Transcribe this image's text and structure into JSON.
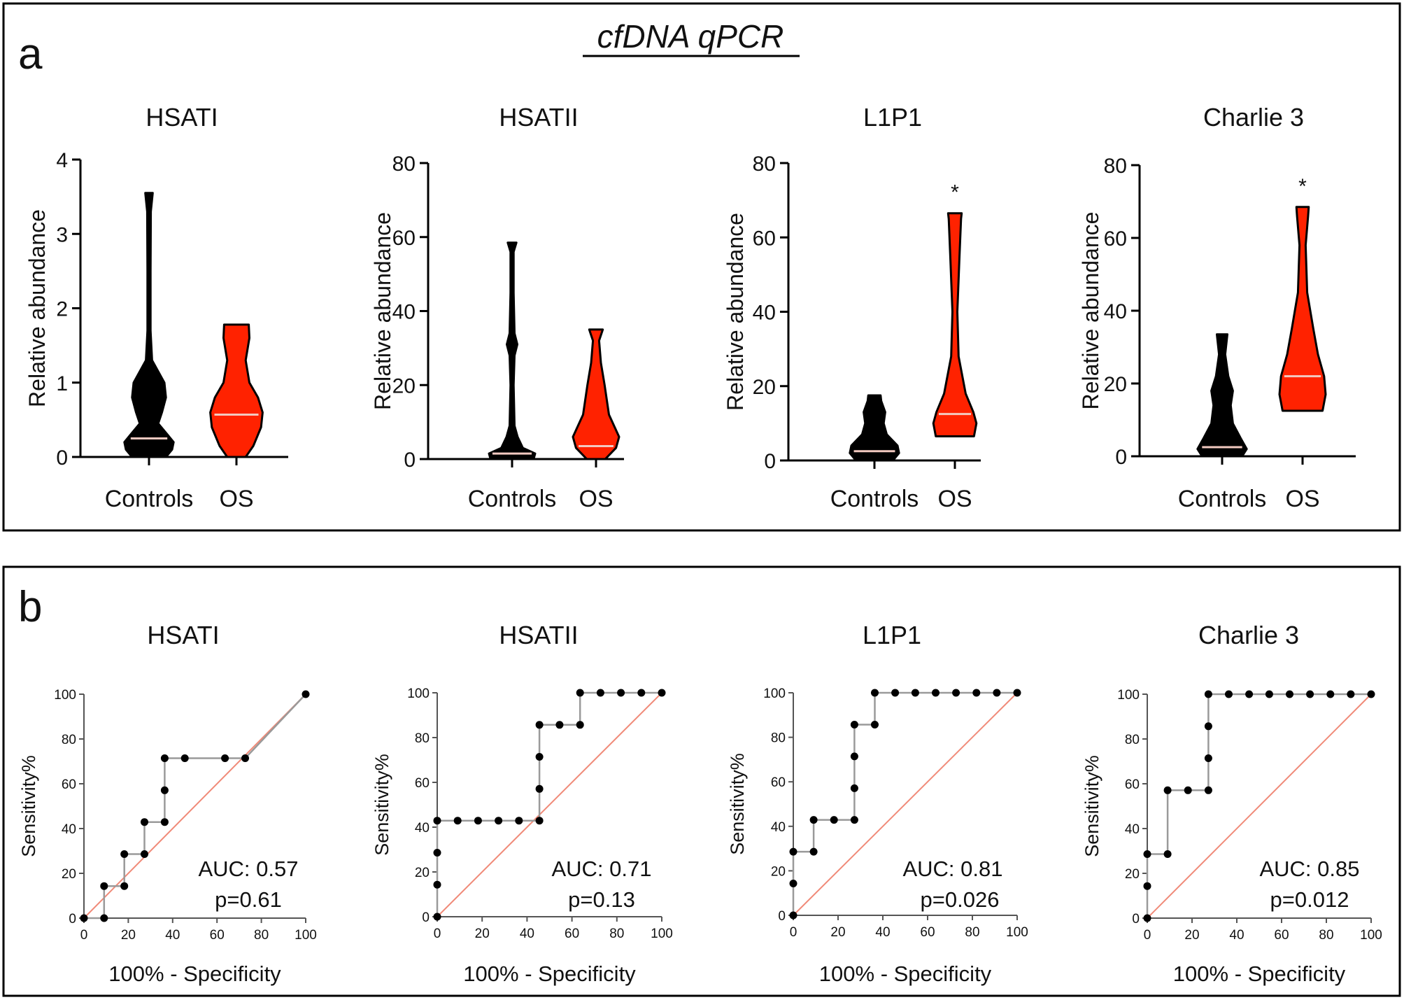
{
  "figure": {
    "panel_a": {
      "letter": "a",
      "heading": "cfDNA qPCR"
    },
    "panel_b": {
      "letter": "b"
    }
  },
  "chart_data": [
    {
      "type": "violin",
      "panel": "a",
      "title": "HSATI",
      "ylabel": "Relative abundance",
      "ylim": [
        0,
        4
      ],
      "yticks": [
        0,
        1,
        2,
        3,
        4
      ],
      "categories": [
        "Controls",
        "OS"
      ],
      "significance": [
        "",
        ""
      ],
      "series": [
        {
          "category": "Controls",
          "color": "#000000",
          "median": 0.25,
          "profile": [
            [
              0,
              0.55
            ],
            [
              0.1,
              0.75
            ],
            [
              0.2,
              0.8
            ],
            [
              0.3,
              0.6
            ],
            [
              0.45,
              0.3
            ],
            [
              0.6,
              0.42
            ],
            [
              0.8,
              0.55
            ],
            [
              1.0,
              0.5
            ],
            [
              1.15,
              0.3
            ],
            [
              1.3,
              0.1
            ],
            [
              1.7,
              0.05
            ],
            [
              2.5,
              0.05
            ],
            [
              3.3,
              0.06
            ],
            [
              3.55,
              0.12
            ]
          ]
        },
        {
          "category": "OS",
          "color": "#ff2200",
          "median": 0.57,
          "profile": [
            [
              0,
              0.3
            ],
            [
              0.15,
              0.55
            ],
            [
              0.4,
              0.8
            ],
            [
              0.6,
              0.85
            ],
            [
              0.8,
              0.7
            ],
            [
              1.0,
              0.42
            ],
            [
              1.3,
              0.3
            ],
            [
              1.6,
              0.42
            ],
            [
              1.78,
              0.4
            ]
          ]
        }
      ]
    },
    {
      "type": "violin",
      "panel": "a",
      "title": "HSATII",
      "ylabel": "Relative abundance",
      "ylim": [
        0,
        80
      ],
      "yticks": [
        0,
        20,
        40,
        60,
        80
      ],
      "categories": [
        "Controls",
        "OS"
      ],
      "significance": [
        "",
        ""
      ],
      "series": [
        {
          "category": "Controls",
          "color": "#000000",
          "median": 1.5,
          "profile": [
            [
              0,
              0.7
            ],
            [
              1.5,
              0.75
            ],
            [
              3,
              0.35
            ],
            [
              6,
              0.18
            ],
            [
              9,
              0.08
            ],
            [
              20,
              0.05
            ],
            [
              28,
              0.08
            ],
            [
              31,
              0.17
            ],
            [
              34,
              0.08
            ],
            [
              45,
              0.05
            ],
            [
              56,
              0.05
            ],
            [
              58.5,
              0.14
            ]
          ]
        },
        {
          "category": "OS",
          "color": "#ff2200",
          "median": 3.5,
          "profile": [
            [
              0,
              0.3
            ],
            [
              3,
              0.65
            ],
            [
              6,
              0.75
            ],
            [
              12,
              0.42
            ],
            [
              20,
              0.28
            ],
            [
              26,
              0.16
            ],
            [
              32,
              0.1
            ],
            [
              35,
              0.22
            ]
          ]
        }
      ]
    },
    {
      "type": "violin",
      "panel": "a",
      "title": "L1P1",
      "ylabel": "Relative abundance",
      "ylim": [
        0,
        80
      ],
      "yticks": [
        0,
        20,
        40,
        60,
        80
      ],
      "categories": [
        "Controls",
        "OS"
      ],
      "significance": [
        "",
        "*"
      ],
      "series": [
        {
          "category": "Controls",
          "color": "#000000",
          "median": 2.5,
          "profile": [
            [
              0,
              0.6
            ],
            [
              2,
              0.8
            ],
            [
              4,
              0.75
            ],
            [
              7,
              0.4
            ],
            [
              10,
              0.3
            ],
            [
              13,
              0.35
            ],
            [
              16,
              0.22
            ],
            [
              17.5,
              0.2
            ]
          ]
        },
        {
          "category": "OS",
          "color": "#ff2200",
          "median": 12.5,
          "profile": [
            [
              6.5,
              0.62
            ],
            [
              10,
              0.7
            ],
            [
              13,
              0.6
            ],
            [
              18,
              0.35
            ],
            [
              28,
              0.12
            ],
            [
              40,
              0.08
            ],
            [
              55,
              0.15
            ],
            [
              65,
              0.2
            ],
            [
              66.5,
              0.22
            ]
          ]
        }
      ]
    },
    {
      "type": "violin",
      "panel": "a",
      "title": "Charlie 3",
      "ylabel": "Relative abundance",
      "ylim": [
        0,
        80
      ],
      "yticks": [
        0,
        20,
        40,
        60,
        80
      ],
      "categories": [
        "Controls",
        "OS"
      ],
      "significance": [
        "",
        "*"
      ],
      "series": [
        {
          "category": "Controls",
          "color": "#000000",
          "median": 2.5,
          "profile": [
            [
              0,
              0.65
            ],
            [
              2,
              0.8
            ],
            [
              5,
              0.6
            ],
            [
              9,
              0.35
            ],
            [
              14,
              0.28
            ],
            [
              18,
              0.35
            ],
            [
              22,
              0.2
            ],
            [
              28,
              0.1
            ],
            [
              33.5,
              0.17
            ]
          ]
        },
        {
          "category": "OS",
          "color": "#ff2200",
          "median": 22,
          "profile": [
            [
              12.5,
              0.65
            ],
            [
              17,
              0.75
            ],
            [
              22,
              0.7
            ],
            [
              28,
              0.5
            ],
            [
              35,
              0.35
            ],
            [
              45,
              0.15
            ],
            [
              58,
              0.1
            ],
            [
              66,
              0.18
            ],
            [
              68.5,
              0.2
            ]
          ]
        }
      ]
    },
    {
      "type": "roc",
      "panel": "b",
      "title": "HSATI",
      "xlabel": "100% - Specificity",
      "ylabel": "Sensitivity%",
      "xlim": [
        0,
        100
      ],
      "ylim": [
        0,
        100
      ],
      "ticks": [
        0,
        20,
        40,
        60,
        80,
        100
      ],
      "auc_label": "AUC: 0.57",
      "p_label": "p=0.61",
      "x": [
        0,
        9.1,
        9.1,
        18.2,
        18.2,
        27.3,
        27.3,
        36.4,
        36.4,
        36.4,
        45.5,
        63.6,
        72.7,
        100
      ],
      "y": [
        0,
        0,
        14.3,
        14.3,
        28.6,
        28.6,
        42.9,
        42.9,
        57.1,
        71.4,
        71.4,
        71.4,
        71.4,
        100
      ]
    },
    {
      "type": "roc",
      "panel": "b",
      "title": "HSATII",
      "xlabel": "100% - Specificity",
      "ylabel": "Sensitivity%",
      "xlim": [
        0,
        100
      ],
      "ylim": [
        0,
        100
      ],
      "ticks": [
        0,
        20,
        40,
        60,
        80,
        100
      ],
      "auc_label": "AUC: 0.71",
      "p_label": "p=0.13",
      "x": [
        0,
        0,
        0,
        0,
        9.1,
        18.2,
        27.3,
        36.4,
        45.5,
        45.5,
        45.5,
        45.5,
        54.5,
        63.6,
        63.6,
        72.7,
        81.8,
        90.9,
        100
      ],
      "y": [
        0,
        14.3,
        28.6,
        42.9,
        42.9,
        42.9,
        42.9,
        42.9,
        42.9,
        57.1,
        71.4,
        85.7,
        85.7,
        85.7,
        100,
        100,
        100,
        100,
        100
      ]
    },
    {
      "type": "roc",
      "panel": "b",
      "title": "L1P1",
      "xlabel": "100% - Specificity",
      "ylabel": "Sensitivity%",
      "xlim": [
        0,
        100
      ],
      "ylim": [
        0,
        100
      ],
      "ticks": [
        0,
        20,
        40,
        60,
        80,
        100
      ],
      "auc_label": "AUC: 0.81",
      "p_label": "p=0.026",
      "x": [
        0,
        0,
        0,
        9.1,
        9.1,
        18.2,
        27.3,
        27.3,
        27.3,
        27.3,
        36.4,
        36.4,
        45.5,
        54.5,
        63.6,
        72.7,
        81.8,
        90.9,
        100
      ],
      "y": [
        0,
        14.3,
        28.6,
        28.6,
        42.9,
        42.9,
        42.9,
        57.1,
        71.4,
        85.7,
        85.7,
        100,
        100,
        100,
        100,
        100,
        100,
        100,
        100
      ]
    },
    {
      "type": "roc",
      "panel": "b",
      "title": "Charlie 3",
      "xlabel": "100% - Specificity",
      "ylabel": "Sensitivity%",
      "xlim": [
        0,
        100
      ],
      "ylim": [
        0,
        100
      ],
      "ticks": [
        0,
        20,
        40,
        60,
        80,
        100
      ],
      "auc_label": "AUC: 0.85",
      "p_label": "p=0.012",
      "x": [
        0,
        0,
        0,
        9.1,
        9.1,
        18.2,
        27.3,
        27.3,
        27.3,
        27.3,
        36.4,
        45.5,
        54.5,
        63.6,
        72.7,
        81.8,
        90.9,
        100
      ],
      "y": [
        0,
        14.3,
        28.6,
        28.6,
        57.1,
        57.1,
        57.1,
        71.4,
        85.7,
        100,
        100,
        100,
        100,
        100,
        100,
        100,
        100,
        100
      ]
    }
  ]
}
